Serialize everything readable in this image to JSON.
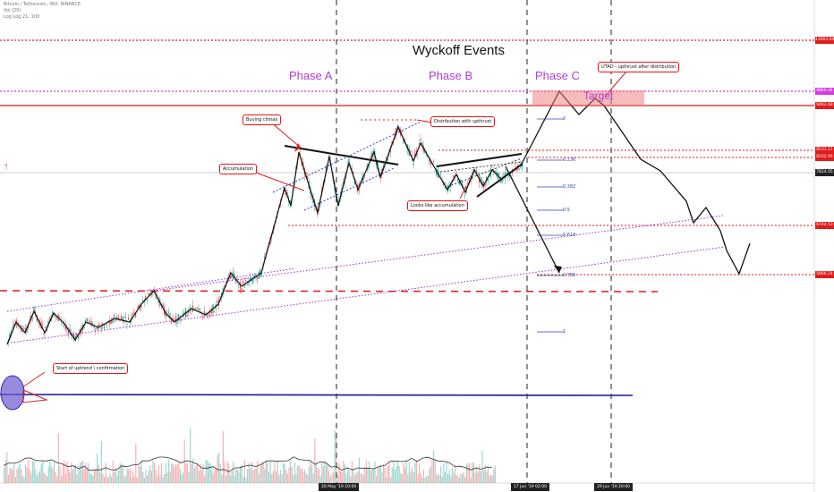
{
  "header": {
    "symbol_line": "Bitcoin / Tethercoin, 360, BINANCE",
    "volume_line": "Vol (20)",
    "indicator_line": "Log Log 21, 100"
  },
  "chart_data": {
    "type": "candlestick",
    "title": "Wyckoff Events",
    "phases": [
      "Phase A",
      "Phase B",
      "Phase C"
    ],
    "annotations": [
      "Buying climax",
      "Accumulation",
      "Distribution with upthrust",
      "Looks like accumulation",
      "UTAD - upthrust after distribution",
      "Start of uptrend \\ confirmation"
    ],
    "target_label": "Target",
    "fib_levels": [
      "0",
      "0.236",
      "0.382",
      "0.5",
      "0.618",
      "0.786",
      "1"
    ],
    "price_labels": [
      {
        "value": "13903.84",
        "color": "#e21b1b"
      },
      {
        "value": "9860.44",
        "color": "#d43be0"
      },
      {
        "value": "9463.68",
        "color": "#e21b1b"
      },
      {
        "value": "8531.11",
        "color": "#e21b1b"
      },
      {
        "value": "8332.95",
        "color": "#e21b1b"
      },
      {
        "value": "7824.05",
        "color": "#222222"
      },
      {
        "value": "6744.53",
        "color": "#e21b1b"
      },
      {
        "value": "5866.24",
        "color": "#e21b1b"
      }
    ],
    "date_labels": [
      "20 May '19  10:00",
      "17 Jun '19  02:00",
      "29 Jun '19  20:00"
    ],
    "colors": {
      "up": "#26a69a",
      "down": "#ef5350",
      "level_line": "#e21b1b",
      "phase_text": "#b03cd6",
      "trend": "#9b30d9",
      "horizontal_support": "#1a1a9a",
      "projection": "#111111"
    }
  }
}
